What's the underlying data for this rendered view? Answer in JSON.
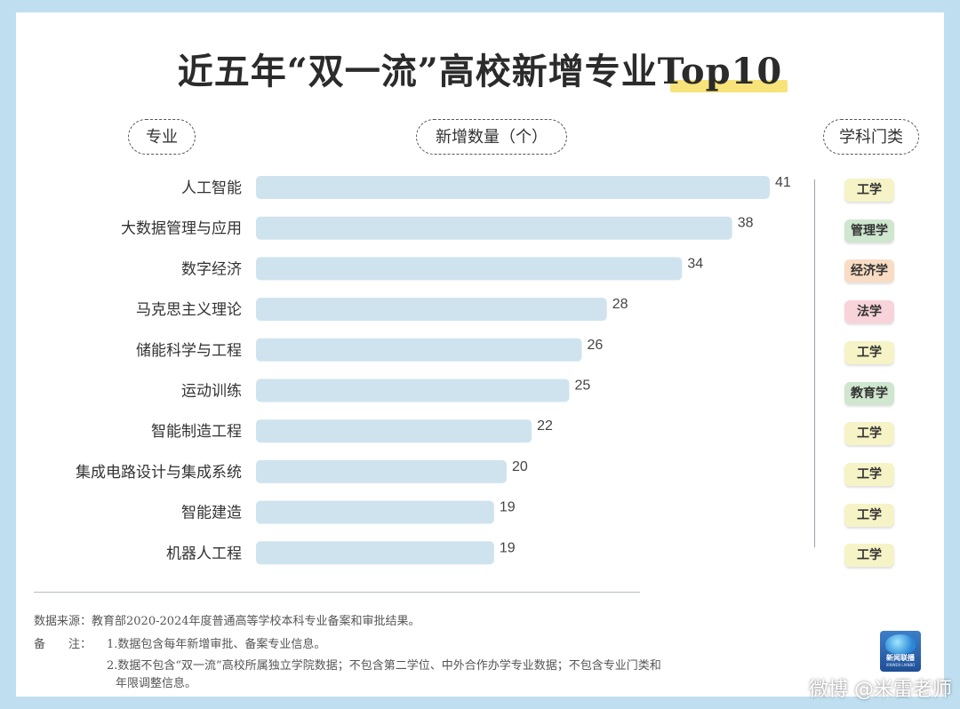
{
  "title": "近五年“双一流”高校新增专业Top10",
  "headers": {
    "major": "专业",
    "count": "新增数量（个）",
    "category": "学科门类"
  },
  "chart_data": {
    "type": "bar",
    "orientation": "horizontal",
    "categories": [
      "人工智能",
      "大数据管理与应用",
      "数字经济",
      "马克思主义理论",
      "储能科学与工程",
      "运动训练",
      "智能制造工程",
      "集成电路设计与集成系统",
      "智能建造",
      "机器人工程"
    ],
    "values": [
      41,
      38,
      34,
      28,
      26,
      25,
      22,
      20,
      19,
      19
    ],
    "title": "近五年“双一流”高校新增专业Top10",
    "xlabel": "新增数量（个）",
    "ylabel": "专业",
    "xlim": [
      0,
      41
    ],
    "grid": false,
    "legend": "none",
    "bar_color": "#cfe3ef"
  },
  "categories_badges": [
    {
      "label": "工学",
      "color": "#f6f3c6"
    },
    {
      "label": "管理学",
      "color": "#cfe6cf"
    },
    {
      "label": "经济学",
      "color": "#f9dcc4"
    },
    {
      "label": "法学",
      "color": "#f8d4da"
    },
    {
      "label": "工学",
      "color": "#f6f3c6"
    },
    {
      "label": "教育学",
      "color": "#cfe6cf"
    },
    {
      "label": "工学",
      "color": "#f6f3c6"
    },
    {
      "label": "工学",
      "color": "#f6f3c6"
    },
    {
      "label": "工学",
      "color": "#f6f3c6"
    },
    {
      "label": "工学",
      "color": "#f6f3c6"
    }
  ],
  "notes": {
    "source": "数据来源：教育部2020-2024年度普通高等学校本科专业备案和审批结果。",
    "remark_label": "备　　注：",
    "remark1": "1.数据包含每年新增审批、备案专业信息。",
    "remark2": "2.数据不包含“双一流”高校所属独立学院数据；不包含第二学位、中外合作办学专业数据；不包含专业门类和",
    "remark3": "年限调整信息。"
  },
  "logo": {
    "text": "新闻联播",
    "sub": "XINWEN LIANBO"
  },
  "watermark": "微博 @米雷老师"
}
